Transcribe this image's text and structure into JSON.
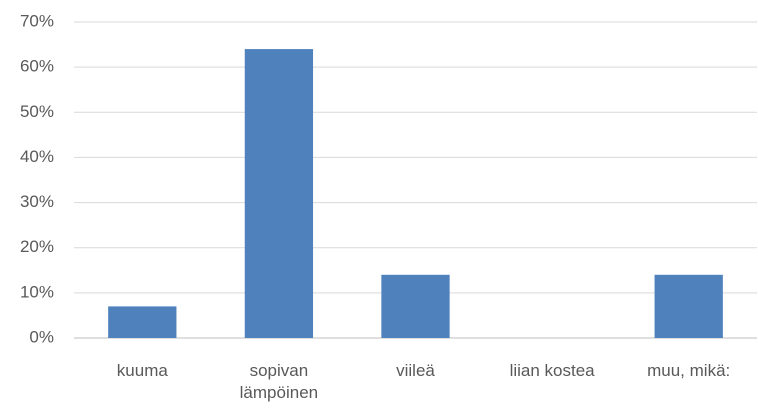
{
  "chart_data": {
    "type": "bar",
    "categories": [
      "kuuma",
      "sopivan lämpöinen",
      "viileä",
      "liian kostea",
      "muu, mikä:"
    ],
    "values": [
      7,
      64,
      14,
      0,
      14
    ],
    "color": "#4f81bd",
    "ylim": [
      0,
      70
    ],
    "yticks": [
      {
        "value": 0,
        "label": "0%"
      },
      {
        "value": 10,
        "label": "10%"
      },
      {
        "value": 20,
        "label": "20%"
      },
      {
        "value": 30,
        "label": "30%"
      },
      {
        "value": 40,
        "label": "40%"
      },
      {
        "value": 50,
        "label": "50%"
      },
      {
        "value": 60,
        "label": "60%"
      },
      {
        "value": 70,
        "label": "70%"
      }
    ],
    "grid": true
  }
}
